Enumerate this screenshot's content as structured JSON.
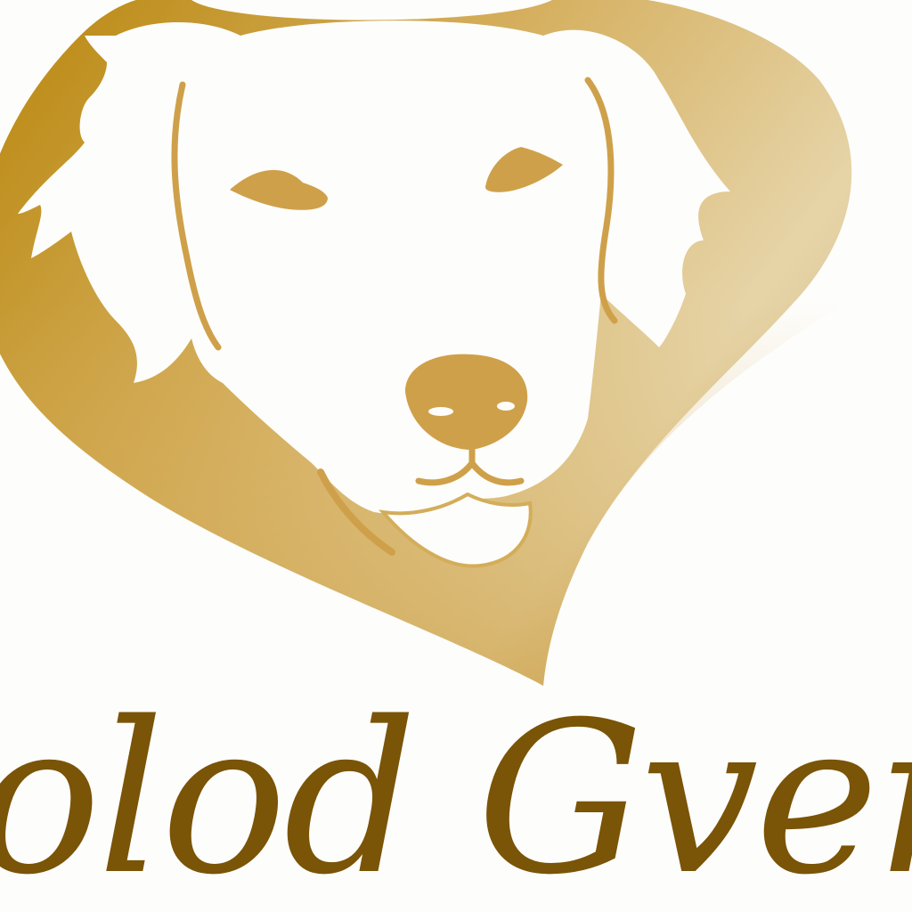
{
  "logo": {
    "wordmark": "olod Gver",
    "colors": {
      "gold_dark": "#b8860b",
      "gold_mid": "#d4ad5a",
      "gold_light": "#e6d4a8",
      "feature_gold": "#cfa04a",
      "text_brown": "#7a5407",
      "background": "#fdfdfb"
    },
    "icon": "dog-head-in-heart-icon"
  }
}
